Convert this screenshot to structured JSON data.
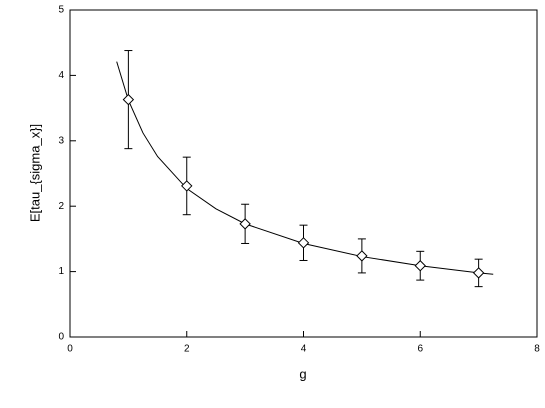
{
  "chart_data": {
    "type": "scatter",
    "xlabel": "g",
    "ylabel": "E[tau_{sigma_x}]",
    "xlim": [
      0,
      8
    ],
    "ylim": [
      0,
      5
    ],
    "xticks": [
      0,
      2,
      4,
      6,
      8
    ],
    "yticks": [
      0,
      1,
      2,
      3,
      4,
      5
    ],
    "series": [
      {
        "mode": "line",
        "color": "#000000",
        "x": [
          0.8,
          1,
          1.25,
          1.5,
          2,
          2.5,
          3,
          4,
          5,
          6,
          7,
          7.25
        ],
        "values": [
          4.21,
          3.62,
          3.12,
          2.76,
          2.27,
          1.96,
          1.73,
          1.43,
          1.23,
          1.09,
          0.98,
          0.96
        ]
      },
      {
        "mode": "markers",
        "color": "#000000",
        "x": [
          1,
          2,
          3,
          4,
          5,
          6,
          7
        ],
        "values": [
          3.63,
          2.31,
          1.73,
          1.44,
          1.24,
          1.09,
          0.98
        ],
        "errors": [
          0.75,
          0.44,
          0.3,
          0.27,
          0.26,
          0.22,
          0.21
        ]
      }
    ]
  }
}
